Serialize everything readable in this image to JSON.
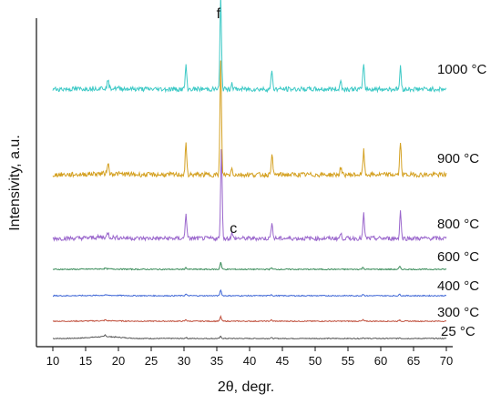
{
  "chart_data": {
    "type": "line",
    "title": "",
    "xlabel": "2θ, degr.",
    "ylabel": "Intensivity, a.u.",
    "xlim": [
      8,
      70
    ],
    "xticks": [
      10,
      15,
      20,
      25,
      30,
      35,
      40,
      45,
      50,
      55,
      60,
      65,
      70
    ],
    "yticks": [],
    "grid": false,
    "legend": "none",
    "annotations": [
      {
        "text": "f",
        "x": 35.5
      },
      {
        "text": "c",
        "x": 36.7
      }
    ],
    "series": [
      {
        "name": "25 °C",
        "color": "#555555",
        "peak_scale": 0.18,
        "x": [
          10,
          18,
          30.3,
          35.6,
          43.3,
          57.3,
          62.9,
          70
        ],
        "y": [
          0,
          1.5,
          0.8,
          1.6,
          0.6,
          0.6,
          0.6,
          0
        ]
      },
      {
        "name": "300 °C",
        "color": "#c0503d",
        "peak_scale": 0.3,
        "x": [
          10,
          18,
          30.3,
          35.6,
          43.3,
          57.3,
          62.9,
          70
        ],
        "y": [
          0,
          0.8,
          1.2,
          3.6,
          0.9,
          1.0,
          1.0,
          0
        ]
      },
      {
        "name": "400 °C",
        "color": "#3f67d6",
        "peak_scale": 0.35,
        "x": [
          10,
          18,
          30.3,
          35.6,
          43.3,
          57.3,
          62.9,
          70
        ],
        "y": [
          0,
          0.5,
          1.2,
          4.6,
          1.0,
          1.2,
          1.2,
          0
        ]
      },
      {
        "name": "600 °C",
        "color": "#3a8c5a",
        "peak_scale": 0.45,
        "x": [
          10,
          18,
          30.3,
          35.6,
          43.3,
          57.3,
          62.9,
          70
        ],
        "y": [
          0,
          0.6,
          1.4,
          5.6,
          1.2,
          1.6,
          2.2,
          0
        ]
      },
      {
        "name": "800 °C",
        "color": "#9a66cc",
        "peak_scale": 0.8,
        "x": [
          10,
          18.4,
          30.3,
          35.7,
          37.3,
          43.4,
          53.9,
          57.4,
          63.0,
          70
        ],
        "y": [
          0,
          1.2,
          6.5,
          23.0,
          1.4,
          4.4,
          1.2,
          6.2,
          7.0,
          0
        ]
      },
      {
        "name": "900 °C",
        "color": "#d4a020",
        "peak_scale": 1.0,
        "x": [
          10,
          18.4,
          30.3,
          35.6,
          37.3,
          43.4,
          53.9,
          57.4,
          63.0,
          70
        ],
        "y": [
          0,
          3.0,
          7.7,
          29.0,
          1.6,
          5.7,
          2.0,
          6.2,
          8.5,
          0
        ]
      },
      {
        "name": "1000 °C",
        "color": "#3dc9c6",
        "peak_scale": 1.0,
        "x": [
          10,
          18.4,
          30.3,
          35.6,
          37.3,
          43.4,
          53.9,
          57.4,
          63.0,
          70
        ],
        "y": [
          0,
          2.0,
          6.0,
          24.0,
          1.6,
          5.0,
          2.2,
          6.8,
          5.7,
          0
        ]
      }
    ]
  }
}
